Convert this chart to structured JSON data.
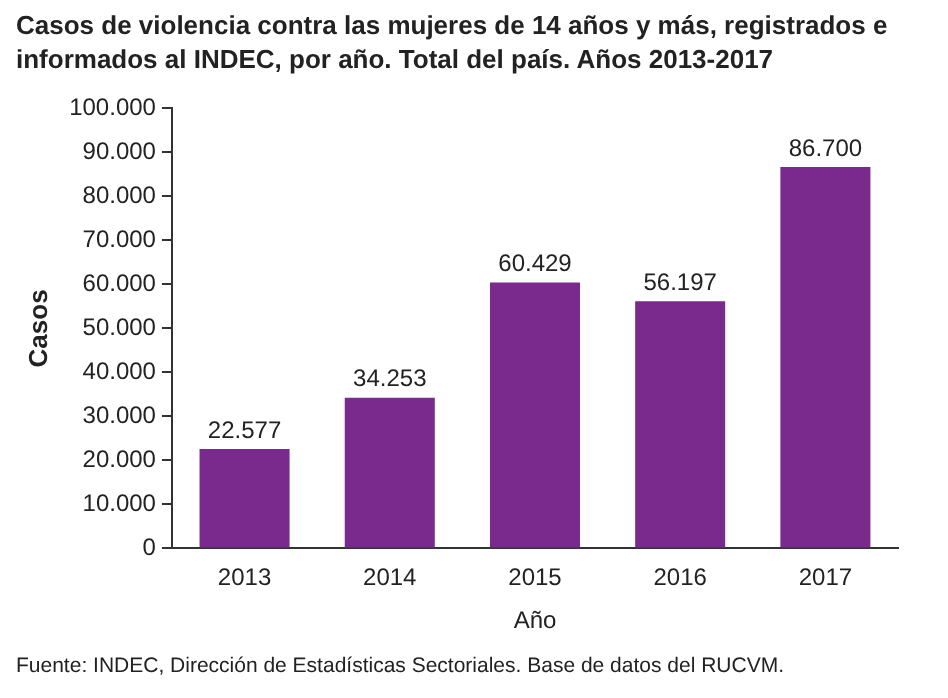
{
  "chart_data": {
    "type": "bar",
    "title": "Casos de violencia contra las mujeres de 14 años y más, registrados e informados al INDEC, por año. Total del país. Años 2013-2017",
    "xlabel": "Año",
    "ylabel": "Casos",
    "categories": [
      "2013",
      "2014",
      "2015",
      "2016",
      "2017"
    ],
    "values": [
      22577,
      34253,
      60429,
      56197,
      86700
    ],
    "value_labels": [
      "22.577",
      "34.253",
      "60.429",
      "56.197",
      "86.700"
    ],
    "color": "#7a2a8c",
    "ylim": [
      0,
      100000
    ],
    "yticks": [
      0,
      {
        "value": 10000,
        "label": "10.000"
      },
      {
        "value": 20000,
        "label": "20.000"
      },
      {
        "value": 30000,
        "label": "30.000"
      },
      {
        "value": 40000,
        "label": "40.000"
      },
      {
        "value": 50000,
        "label": "50.000"
      },
      {
        "value": 60000,
        "label": "60.000"
      },
      {
        "value": 70000,
        "label": "70.000"
      },
      {
        "value": 80000,
        "label": "80.000"
      },
      {
        "value": 90000,
        "label": "90.000"
      },
      {
        "value": 100000,
        "label": "100.000"
      }
    ],
    "grid": false,
    "legend": false,
    "annotations": [
      "Fuente: INDEC, Dirección de Estadísticas Sectoriales. Base de datos del RUCVM."
    ]
  }
}
